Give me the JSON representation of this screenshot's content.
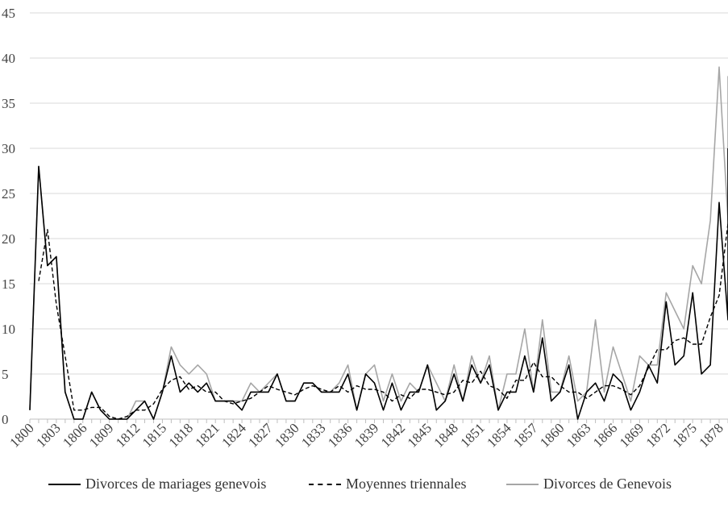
{
  "chart_data": {
    "type": "line",
    "x_start": 1800,
    "x_end": 1879,
    "x_tick_labels": [
      "1800",
      "1803",
      "1806",
      "1809",
      "1812",
      "1815",
      "1818",
      "1821",
      "1824",
      "1827",
      "1830",
      "1833",
      "1836",
      "1839",
      "1842",
      "1845",
      "1848",
      "1851",
      "1854",
      "1857",
      "1860",
      "1863",
      "1866",
      "1869",
      "1872",
      "1875",
      "1878"
    ],
    "ylim": [
      0,
      45
    ],
    "y_ticks": [
      0,
      5,
      10,
      15,
      20,
      25,
      30,
      35,
      40,
      45
    ],
    "grid": "horizontal",
    "legend_position": "bottom",
    "series": [
      {
        "name": "Divorces de mariages genevois",
        "style": "solid",
        "color": "#000000",
        "values": [
          1,
          28,
          17,
          18,
          3,
          0,
          0,
          3,
          1,
          0,
          0,
          0,
          1,
          2,
          0,
          3,
          7,
          3,
          4,
          3,
          4,
          2,
          2,
          2,
          1,
          3,
          3,
          3,
          5,
          2,
          2,
          4,
          4,
          3,
          3,
          3,
          5,
          1,
          5,
          4,
          1,
          4,
          1,
          3,
          3,
          6,
          1,
          2,
          5,
          2,
          6,
          4,
          6,
          1,
          3,
          3,
          7,
          3,
          9,
          2,
          3,
          6,
          0,
          3,
          4,
          2,
          5,
          4,
          1,
          3,
          6,
          4,
          13,
          6,
          7,
          14,
          5,
          6,
          24,
          11,
          30
        ]
      },
      {
        "name": "Moyennes triennales",
        "style": "dashed",
        "color": "#000000",
        "values": [
          null,
          15.3,
          21,
          12.7,
          7,
          1,
          1,
          1.3,
          1.3,
          0.3,
          0,
          0.3,
          1,
          1,
          1.7,
          3.3,
          4.3,
          4.7,
          3.3,
          3.7,
          3,
          3,
          2,
          1.7,
          2,
          2.3,
          3,
          3.7,
          3.3,
          3,
          2.7,
          3.3,
          3.7,
          3.3,
          3,
          3.7,
          3,
          3.7,
          3.3,
          3.3,
          3,
          2,
          2.7,
          2.3,
          3.3,
          3.3,
          3,
          2.7,
          3,
          4.3,
          4,
          5.3,
          3.7,
          3.3,
          2.3,
          4.3,
          4.3,
          6.3,
          4.7,
          4.7,
          3.7,
          3,
          3,
          2.3,
          3,
          3.7,
          3.7,
          3.3,
          2.7,
          3.7,
          5.7,
          7.7,
          7.7,
          8.7,
          9,
          8.3,
          8.3,
          11.3,
          13.7,
          21.7,
          null
        ]
      },
      {
        "name": "Divorces de Genevois",
        "style": "solid",
        "color": "#a6a6a6",
        "values": [
          1,
          28,
          17,
          18,
          3,
          0,
          0,
          3,
          1,
          0,
          0,
          0,
          2,
          2,
          0,
          3,
          8,
          6,
          5,
          6,
          5,
          2,
          2,
          2,
          2,
          4,
          3,
          4,
          5,
          2,
          2,
          4,
          4,
          3,
          3,
          4,
          6,
          1,
          5,
          6,
          2,
          5,
          2,
          4,
          3,
          6,
          4,
          2,
          6,
          2,
          7,
          4,
          7,
          1,
          5,
          5,
          10,
          3,
          11,
          3,
          3,
          7,
          2,
          3,
          11,
          3,
          8,
          5,
          2,
          7,
          6,
          6,
          14,
          12,
          10,
          17,
          15,
          22,
          39,
          22,
          38
        ]
      }
    ]
  }
}
